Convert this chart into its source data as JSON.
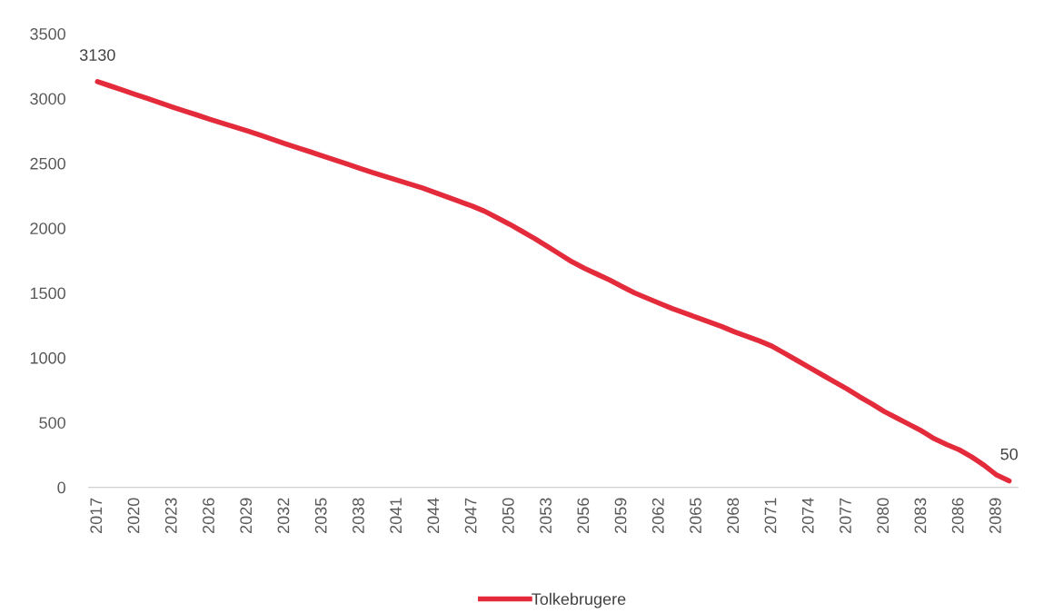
{
  "chart_data": {
    "type": "line",
    "categories": [
      "2017",
      null,
      null,
      "2020",
      null,
      null,
      "2023",
      null,
      null,
      "2026",
      null,
      null,
      "2029",
      null,
      null,
      "2032",
      null,
      null,
      "2035",
      null,
      null,
      "2038",
      null,
      null,
      "2041",
      null,
      null,
      "2044",
      null,
      null,
      "2047",
      null,
      null,
      "2050",
      null,
      null,
      "2053",
      null,
      null,
      "2056",
      null,
      null,
      "2059",
      null,
      null,
      "2062",
      null,
      null,
      "2065",
      null,
      null,
      "2068",
      null,
      null,
      "2071",
      null,
      null,
      "2074",
      null,
      null,
      "2077",
      null,
      null,
      "2080",
      null,
      null,
      "2083",
      null,
      null,
      "2086",
      null,
      null,
      "2089",
      null
    ],
    "series": [
      {
        "name": "Tolkebrugere",
        "color": "#e32b3b",
        "values": [
          3130,
          3098,
          3065,
          3033,
          3000,
          2968,
          2935,
          2903,
          2872,
          2840,
          2810,
          2780,
          2750,
          2718,
          2686,
          2652,
          2620,
          2590,
          2558,
          2526,
          2494,
          2462,
          2430,
          2400,
          2370,
          2340,
          2310,
          2275,
          2240,
          2205,
          2170,
          2130,
          2080,
          2030,
          1975,
          1920,
          1860,
          1800,
          1740,
          1690,
          1645,
          1600,
          1550,
          1500,
          1460,
          1420,
          1380,
          1345,
          1310,
          1275,
          1240,
          1200,
          1165,
          1130,
          1090,
          1035,
          980,
          925,
          870,
          815,
          760,
          700,
          645,
          585,
          535,
          485,
          435,
          375,
          330,
          290,
          235,
          170,
          95,
          50
        ],
        "value_labels": [
          "3130",
          null,
          null,
          null,
          null,
          null,
          null,
          null,
          null,
          null,
          null,
          null,
          null,
          null,
          null,
          null,
          null,
          null,
          null,
          null,
          null,
          null,
          null,
          null,
          null,
          null,
          null,
          null,
          null,
          null,
          null,
          null,
          null,
          null,
          null,
          null,
          null,
          null,
          null,
          null,
          null,
          null,
          null,
          null,
          null,
          null,
          null,
          null,
          null,
          null,
          null,
          null,
          null,
          null,
          null,
          null,
          null,
          null,
          null,
          null,
          null,
          null,
          null,
          null,
          null,
          null,
          null,
          null,
          null,
          null,
          null,
          null,
          null,
          "50"
        ]
      }
    ],
    "ylim": [
      0,
      3500
    ],
    "yticks": [
      0,
      500,
      1000,
      1500,
      2000,
      2500,
      3000,
      3500
    ],
    "grid": false,
    "legend": "bottom",
    "marker": "none",
    "line_style": "solid"
  }
}
